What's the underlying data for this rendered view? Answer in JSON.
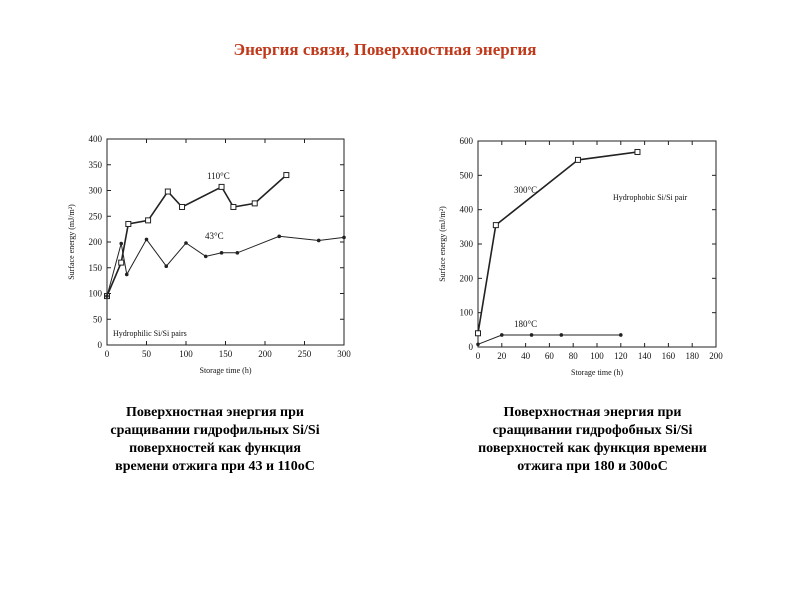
{
  "slide": {
    "title": "Энергия связи, Поверхностная энергия"
  },
  "chart_data": [
    {
      "type": "line",
      "title": "",
      "xlabel": "Storage time (h)",
      "ylabel": "Surface energy (mJ/m²)",
      "xlim": [
        0,
        300
      ],
      "ylim": [
        0,
        400
      ],
      "xticks": [
        "0",
        "50",
        "100",
        "150",
        "200",
        "250",
        "300"
      ],
      "yticks": [
        "0",
        "50",
        "100",
        "150",
        "200",
        "250",
        "300",
        "350",
        "400"
      ],
      "grid": false,
      "legend": "none",
      "annotation": "Hydrophilic Si/Si pairs",
      "series": [
        {
          "name": "110°C",
          "marker": "square",
          "x": [
            0,
            18,
            27,
            52,
            77,
            95,
            145,
            160,
            187,
            227
          ],
          "y": [
            95,
            160,
            235,
            242,
            298,
            268,
            307,
            268,
            275,
            330
          ]
        },
        {
          "name": "43°C",
          "marker": "dot",
          "x": [
            0,
            18,
            25,
            50,
            75,
            100,
            125,
            145,
            165,
            218,
            268,
            300
          ],
          "y": [
            95,
            197,
            137,
            205,
            153,
            198,
            172,
            179,
            179,
            211,
            203,
            209
          ]
        }
      ]
    },
    {
      "type": "line",
      "title": "",
      "xlabel": "Storage time (h)",
      "ylabel": "Surface energy (mJ/m²)",
      "xlim": [
        0,
        200
      ],
      "ylim": [
        0,
        600
      ],
      "xticks": [
        "0",
        "20",
        "40",
        "60",
        "80",
        "100",
        "120",
        "140",
        "160",
        "180",
        "200"
      ],
      "yticks": [
        "0",
        "100",
        "200",
        "300",
        "400",
        "500",
        "600"
      ],
      "grid": false,
      "legend": "none",
      "annotation": "Hydrophobic Si/Si pair",
      "series": [
        {
          "name": "300°C",
          "marker": "square",
          "x": [
            0,
            15,
            84,
            134
          ],
          "y": [
            40,
            355,
            545,
            568
          ]
        },
        {
          "name": "180°C",
          "marker": "dot",
          "x": [
            0,
            20,
            45,
            70,
            120
          ],
          "y": [
            8,
            35,
            35,
            35,
            35
          ]
        }
      ]
    }
  ],
  "captions": {
    "left": [
      "Поверхностная энергия при",
      "сращивании гидрофильных Si/Si",
      "поверхностей как функция",
      "времени отжига при 43 и 110oC"
    ],
    "right": [
      "Поверхностная энергия при",
      "сращивании гидрофобных Si/Si",
      "поверхностей как функция времени",
      "отжига при 180 и 300oC"
    ]
  }
}
